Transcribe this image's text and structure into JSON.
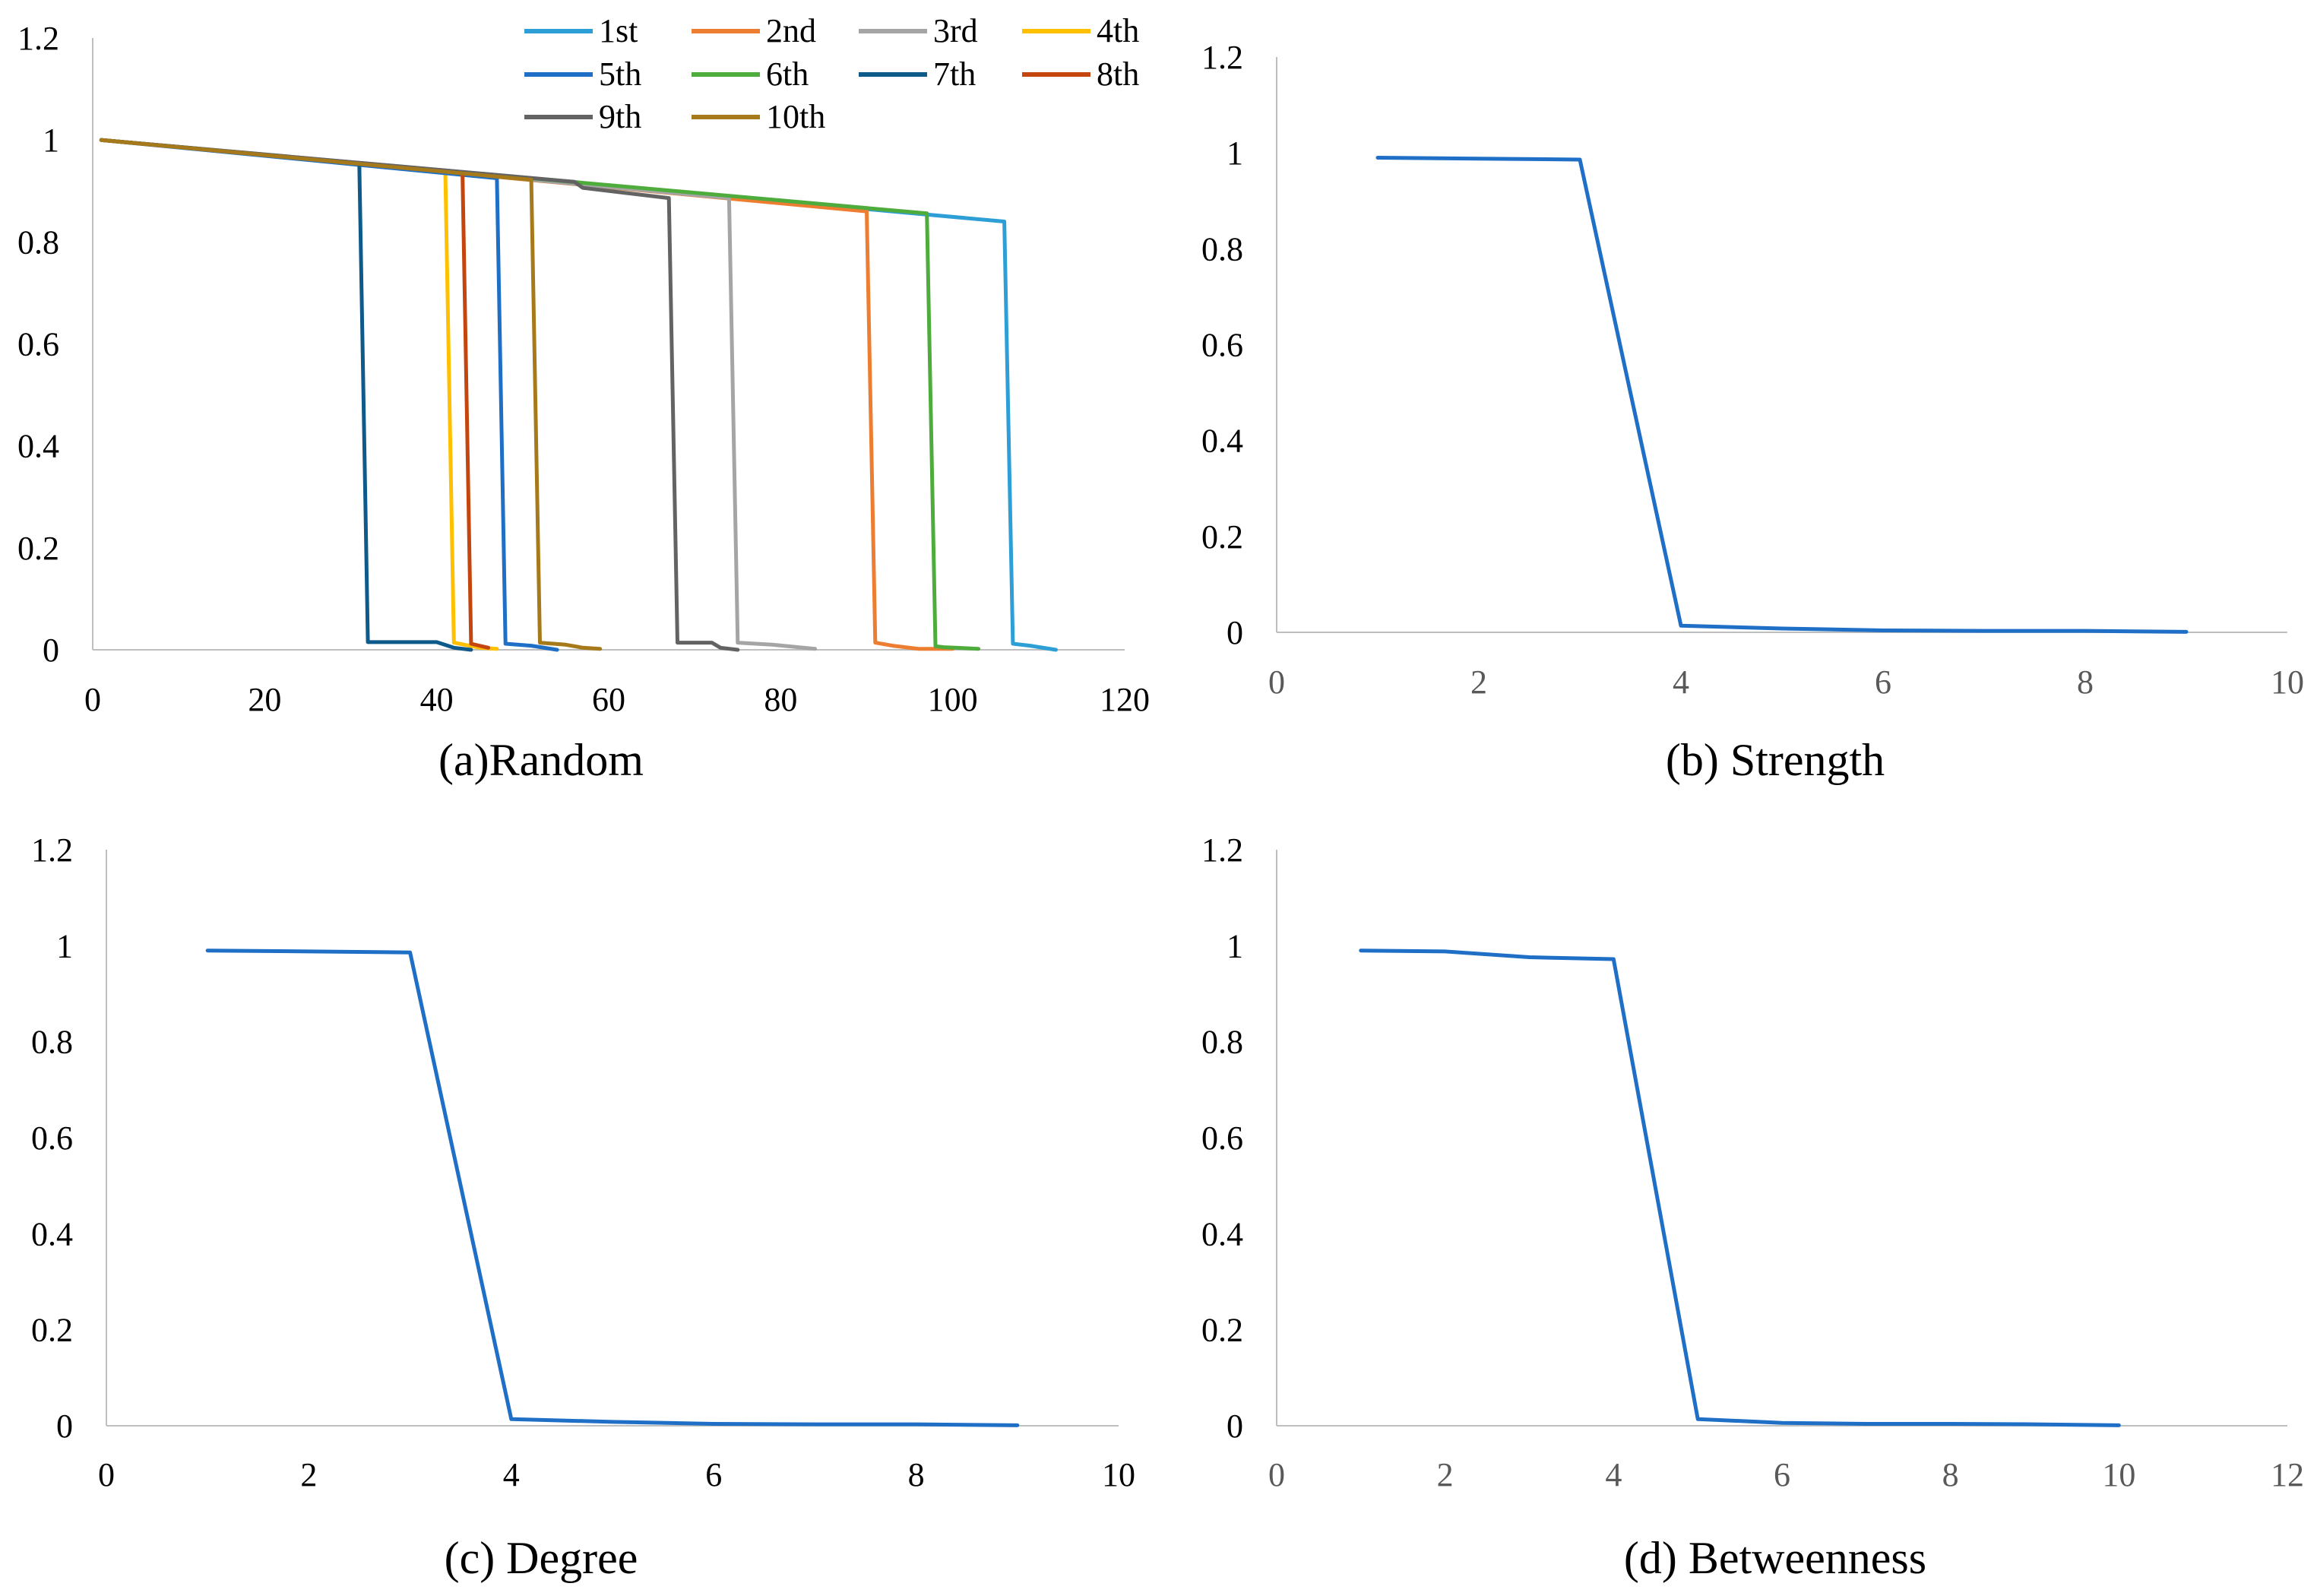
{
  "chart_data": [
    {
      "id": "a",
      "type": "line",
      "title": "(a)Random",
      "xlabel": "",
      "ylabel": "",
      "xlim": [
        0,
        120
      ],
      "ylim": [
        0,
        1.2
      ],
      "xticks": [
        "0",
        "20",
        "40",
        "60",
        "80",
        "100",
        "120"
      ],
      "yticks": [
        "0",
        "0.2",
        "0.4",
        "0.6",
        "0.8",
        "1",
        "1.2"
      ],
      "legend_position": "top-right",
      "series": [
        {
          "name": "1st",
          "color": "#2E9FD6",
          "x": [
            1,
            106,
            107,
            109,
            112
          ],
          "y": [
            1,
            0.84,
            0.012,
            0.008,
            0
          ]
        },
        {
          "name": "2nd",
          "color": "#ED7D31",
          "x": [
            1,
            90,
            91,
            93,
            96,
            100
          ],
          "y": [
            1,
            0.86,
            0.014,
            0.008,
            0.002,
            0.002
          ]
        },
        {
          "name": "3rd",
          "color": "#A5A5A5",
          "x": [
            1,
            74,
            75,
            79,
            84
          ],
          "y": [
            1,
            0.886,
            0.014,
            0.01,
            0.002
          ]
        },
        {
          "name": "4th",
          "color": "#FFC000",
          "x": [
            1,
            41,
            42,
            45,
            47
          ],
          "y": [
            1,
            0.938,
            0.014,
            0.004,
            0.002
          ]
        },
        {
          "name": "5th",
          "color": "#1F6FC6",
          "x": [
            1,
            47,
            48,
            51,
            54
          ],
          "y": [
            1,
            0.925,
            0.012,
            0.008,
            0
          ]
        },
        {
          "name": "6th",
          "color": "#4EAC3C",
          "x": [
            1,
            97,
            98,
            99,
            103
          ],
          "y": [
            1,
            0.856,
            0.007,
            0.005,
            0.002
          ]
        },
        {
          "name": "7th",
          "color": "#0E5A8A",
          "x": [
            1,
            31,
            32,
            40,
            42,
            44
          ],
          "y": [
            1,
            0.954,
            0.015,
            0.015,
            0.004,
            0
          ]
        },
        {
          "name": "8th",
          "color": "#C4460E",
          "x": [
            1,
            43,
            44,
            46
          ],
          "y": [
            1,
            0.936,
            0.012,
            0.004
          ]
        },
        {
          "name": "9th",
          "color": "#636363",
          "x": [
            1,
            56,
            57,
            67,
            68,
            72,
            73,
            75
          ],
          "y": [
            1,
            0.918,
            0.906,
            0.886,
            0.014,
            0.014,
            0.004,
            0
          ]
        },
        {
          "name": "10th",
          "color": "#A67A1A",
          "x": [
            1,
            51,
            52,
            55,
            57,
            59
          ],
          "y": [
            1,
            0.922,
            0.014,
            0.01,
            0.004,
            0.002
          ]
        }
      ]
    },
    {
      "id": "b",
      "type": "line",
      "title": "(b)  Strength",
      "xlabel": "",
      "ylabel": "",
      "xlim": [
        0,
        10
      ],
      "ylim": [
        0,
        1.2
      ],
      "xticks": [
        "0",
        "2",
        "4",
        "6",
        "8",
        "10"
      ],
      "yticks": [
        "0",
        "0.2",
        "0.4",
        "0.6",
        "0.8",
        "1",
        "1.2"
      ],
      "series": [
        {
          "name": "Strength",
          "color": "#1F6FC6",
          "x": [
            1,
            2,
            3,
            4,
            5,
            6,
            7,
            8,
            9
          ],
          "y": [
            0.99,
            0.988,
            0.986,
            0.014,
            0.008,
            0.004,
            0.003,
            0.003,
            0.001
          ]
        }
      ]
    },
    {
      "id": "c",
      "type": "line",
      "title": "(c) Degree",
      "xlabel": "",
      "ylabel": "",
      "xlim": [
        0,
        10
      ],
      "ylim": [
        0,
        1.2
      ],
      "xticks": [
        "0",
        "2",
        "4",
        "6",
        "8",
        "10"
      ],
      "yticks": [
        "0",
        "0.2",
        "0.4",
        "0.6",
        "0.8",
        "1",
        "1.2"
      ],
      "series": [
        {
          "name": "Degree",
          "color": "#1F6FC6",
          "x": [
            1,
            2,
            3,
            4,
            5,
            6,
            7,
            8,
            9
          ],
          "y": [
            0.99,
            0.988,
            0.986,
            0.014,
            0.008,
            0.004,
            0.003,
            0.003,
            0.001
          ]
        }
      ]
    },
    {
      "id": "d",
      "type": "line",
      "title": "(d) Betweenness",
      "xlabel": "",
      "ylabel": "",
      "xlim": [
        0,
        12
      ],
      "ylim": [
        0,
        1.2
      ],
      "xticks": [
        "0",
        "2",
        "4",
        "6",
        "8",
        "10",
        "12"
      ],
      "yticks": [
        "0",
        "0.2",
        "0.4",
        "0.6",
        "0.8",
        "1",
        "1.2"
      ],
      "series": [
        {
          "name": "Betweenness",
          "color": "#1F6FC6",
          "x": [
            1,
            2,
            3,
            4,
            5,
            6,
            7,
            8,
            9,
            10
          ],
          "y": [
            0.99,
            0.988,
            0.976,
            0.972,
            0.014,
            0.006,
            0.004,
            0.004,
            0.003,
            0.001
          ]
        }
      ]
    }
  ]
}
